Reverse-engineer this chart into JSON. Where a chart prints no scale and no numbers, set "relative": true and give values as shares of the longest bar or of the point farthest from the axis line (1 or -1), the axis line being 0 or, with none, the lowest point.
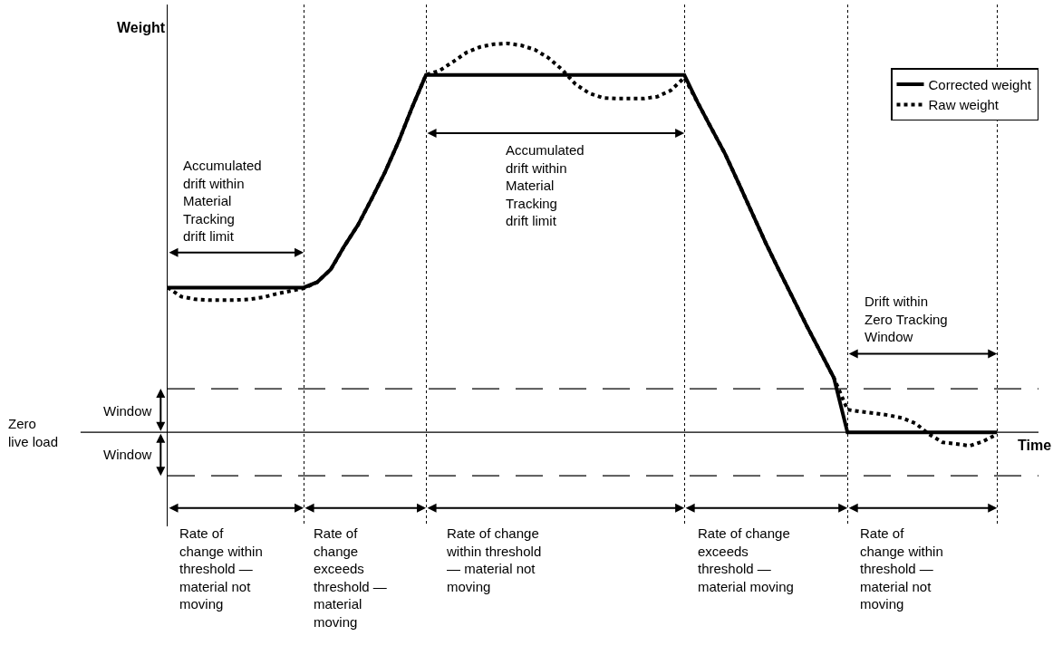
{
  "chart_data": {
    "type": "line",
    "relative": true,
    "xlabel": "Time",
    "ylabel": "Weight",
    "legend": "top right",
    "grid": "x",
    "categories": [
      null,
      null,
      null,
      null,
      null,
      null,
      null,
      null,
      null,
      null,
      null,
      null,
      null,
      null,
      null,
      null,
      null,
      null,
      null,
      null,
      null,
      null,
      null,
      null,
      null,
      null,
      null,
      null,
      null,
      null,
      null,
      null,
      null,
      null,
      null,
      null,
      null,
      null,
      null,
      null,
      null,
      null,
      null,
      null,
      null,
      null,
      null,
      null,
      null,
      null,
      null,
      null,
      null,
      null,
      null,
      null,
      null,
      null,
      null,
      null,
      null,
      null
    ],
    "series": [
      {
        "name": "Corrected weight",
        "color": "#000000",
        "line_style": "solid",
        "values": [
          0.372,
          0.372,
          0.372,
          0.372,
          0.372,
          0.372,
          0.372,
          0.372,
          0.372,
          0.372,
          0.372,
          0.386,
          0.419,
          0.479,
          0.533,
          0.6,
          0.67,
          0.749,
          0.837,
          0.919,
          0.919,
          0.919,
          0.919,
          0.919,
          0.919,
          0.919,
          0.919,
          0.919,
          0.919,
          0.919,
          0.919,
          0.919,
          0.919,
          0.919,
          0.919,
          0.919,
          0.919,
          0.919,
          0.919,
          0.847,
          0.781,
          0.716,
          0.64,
          0.563,
          0.486,
          0.414,
          0.344,
          0.274,
          0.207,
          0.14,
          0,
          0,
          0,
          0,
          0,
          0,
          0,
          0,
          0,
          0,
          0,
          0
        ]
      },
      {
        "name": "Raw weight",
        "color": "#000000",
        "line_style": "dotted",
        "values": [
          0.372,
          0.349,
          0.342,
          0.34,
          0.34,
          0.34,
          0.342,
          0.347,
          0.356,
          0.363,
          0.37,
          0.386,
          0.419,
          0.479,
          0.533,
          0.6,
          0.67,
          0.749,
          0.837,
          0.919,
          0.93,
          0.953,
          0.977,
          0.991,
          0.998,
          1,
          0.995,
          0.984,
          0.963,
          0.933,
          0.895,
          0.872,
          0.86,
          0.858,
          0.858,
          0.858,
          0.863,
          0.879,
          0.912,
          0.847,
          0.781,
          0.716,
          0.64,
          0.563,
          0.486,
          0.414,
          0.344,
          0.274,
          0.207,
          0.14,
          0.058,
          0.053,
          0.049,
          0.044,
          0.037,
          0.023,
          -0.005,
          -0.026,
          -0.03,
          -0.035,
          -0.023,
          -0.005
        ]
      }
    ],
    "ref_lines": [
      {
        "axis": "y",
        "value": 0,
        "label": "Zero\nlive load",
        "color": "#000000",
        "line_style": "solid"
      },
      {
        "axis": "y",
        "value": 0.112,
        "label": "Window",
        "color": "#000000",
        "line_style": "dashed"
      },
      {
        "axis": "y",
        "value": -0.112,
        "label": "Window",
        "color": "#000000",
        "line_style": "dashed"
      }
    ],
    "annotations": [
      "Rate of\nchange within\nthreshold —\nmaterial not\nmoving",
      "Rate of\nchange\nexceeds\nthreshold —\nmaterial\nmoving",
      "Rate of change\nwithin threshold\n— material not\nmoving",
      "Rate of change\nexceeds\nthreshold —\nmaterial moving",
      "Rate of\nchange within\nthreshold —\nmaterial not\nmoving",
      "Accumulated\ndrift within\nMaterial\nTracking\ndrift limit",
      "Accumulated\ndrift within\nMaterial\nTracking\ndrift limit",
      "Drift within\nZero Tracking\nWindow"
    ]
  }
}
